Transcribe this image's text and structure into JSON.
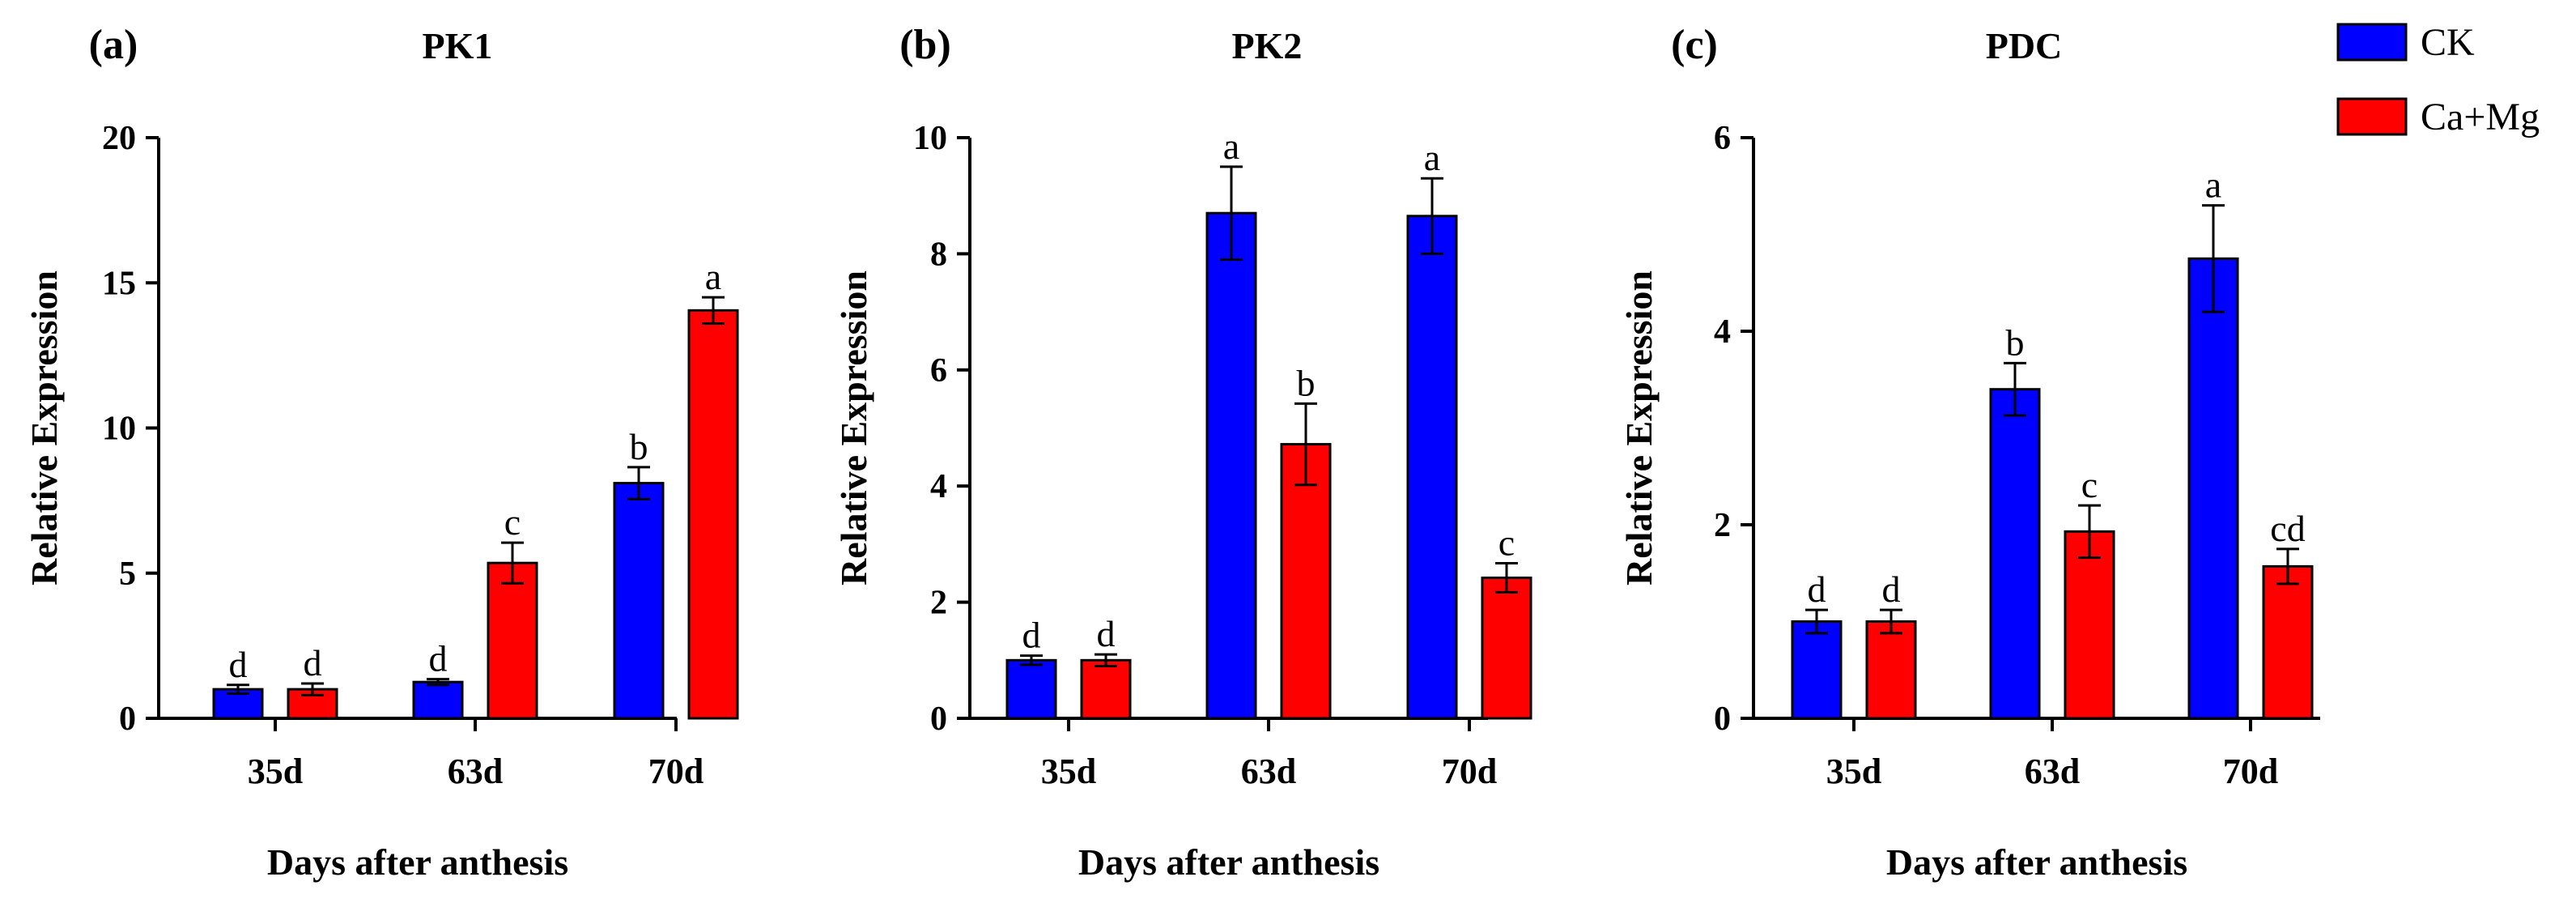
{
  "legend": [
    {
      "name": "CK",
      "color": "#0000ff"
    },
    {
      "name": "Ca+Mg",
      "color": "#ff0000"
    }
  ],
  "chart_data": [
    {
      "type": "bar",
      "panel": "(a)",
      "title": "PK1",
      "xlabel": "Days after anthesis",
      "ylabel": "Relative Expression",
      "categories": [
        "35d",
        "63d",
        "70d"
      ],
      "ylim": [
        0,
        20
      ],
      "yticks": [
        0,
        5,
        10,
        15,
        20
      ],
      "series": [
        {
          "name": "CK",
          "color": "#0000ff",
          "values": [
            1.0,
            1.25,
            8.1
          ],
          "errors": [
            0.15,
            0.1,
            0.55
          ],
          "letters": [
            "d",
            "d",
            "b"
          ]
        },
        {
          "name": "Ca+Mg",
          "color": "#ff0000",
          "values": [
            1.0,
            5.35,
            14.05
          ],
          "errors": [
            0.2,
            0.7,
            0.45
          ],
          "letters": [
            "d",
            "c",
            "a"
          ]
        }
      ]
    },
    {
      "type": "bar",
      "panel": "(b)",
      "title": "PK2",
      "xlabel": "Days after anthesis",
      "ylabel": "Relative Expression",
      "categories": [
        "35d",
        "63d",
        "70d"
      ],
      "ylim": [
        0,
        10
      ],
      "yticks": [
        0,
        2,
        4,
        6,
        8,
        10
      ],
      "series": [
        {
          "name": "CK",
          "color": "#0000ff",
          "values": [
            1.0,
            8.7,
            8.65
          ],
          "errors": [
            0.08,
            0.8,
            0.65
          ],
          "letters": [
            "d",
            "a",
            "a"
          ]
        },
        {
          "name": "Ca+Mg",
          "color": "#ff0000",
          "values": [
            1.0,
            4.72,
            2.42
          ],
          "errors": [
            0.1,
            0.7,
            0.25
          ],
          "letters": [
            "d",
            "b",
            "c"
          ]
        }
      ]
    },
    {
      "type": "bar",
      "panel": "(c)",
      "title": "PDC",
      "xlabel": "Days after anthesis",
      "ylabel": "Relative Expression",
      "categories": [
        "35d",
        "63d",
        "70d"
      ],
      "ylim": [
        0,
        6
      ],
      "yticks": [
        0,
        2,
        4,
        6
      ],
      "series": [
        {
          "name": "CK",
          "color": "#0000ff",
          "values": [
            1.0,
            3.4,
            4.75
          ],
          "errors": [
            0.12,
            0.27,
            0.55
          ],
          "letters": [
            "d",
            "b",
            "a"
          ]
        },
        {
          "name": "Ca+Mg",
          "color": "#ff0000",
          "values": [
            1.0,
            1.93,
            1.57
          ],
          "errors": [
            0.12,
            0.27,
            0.18
          ],
          "letters": [
            "d",
            "c",
            "cd"
          ]
        }
      ]
    }
  ]
}
